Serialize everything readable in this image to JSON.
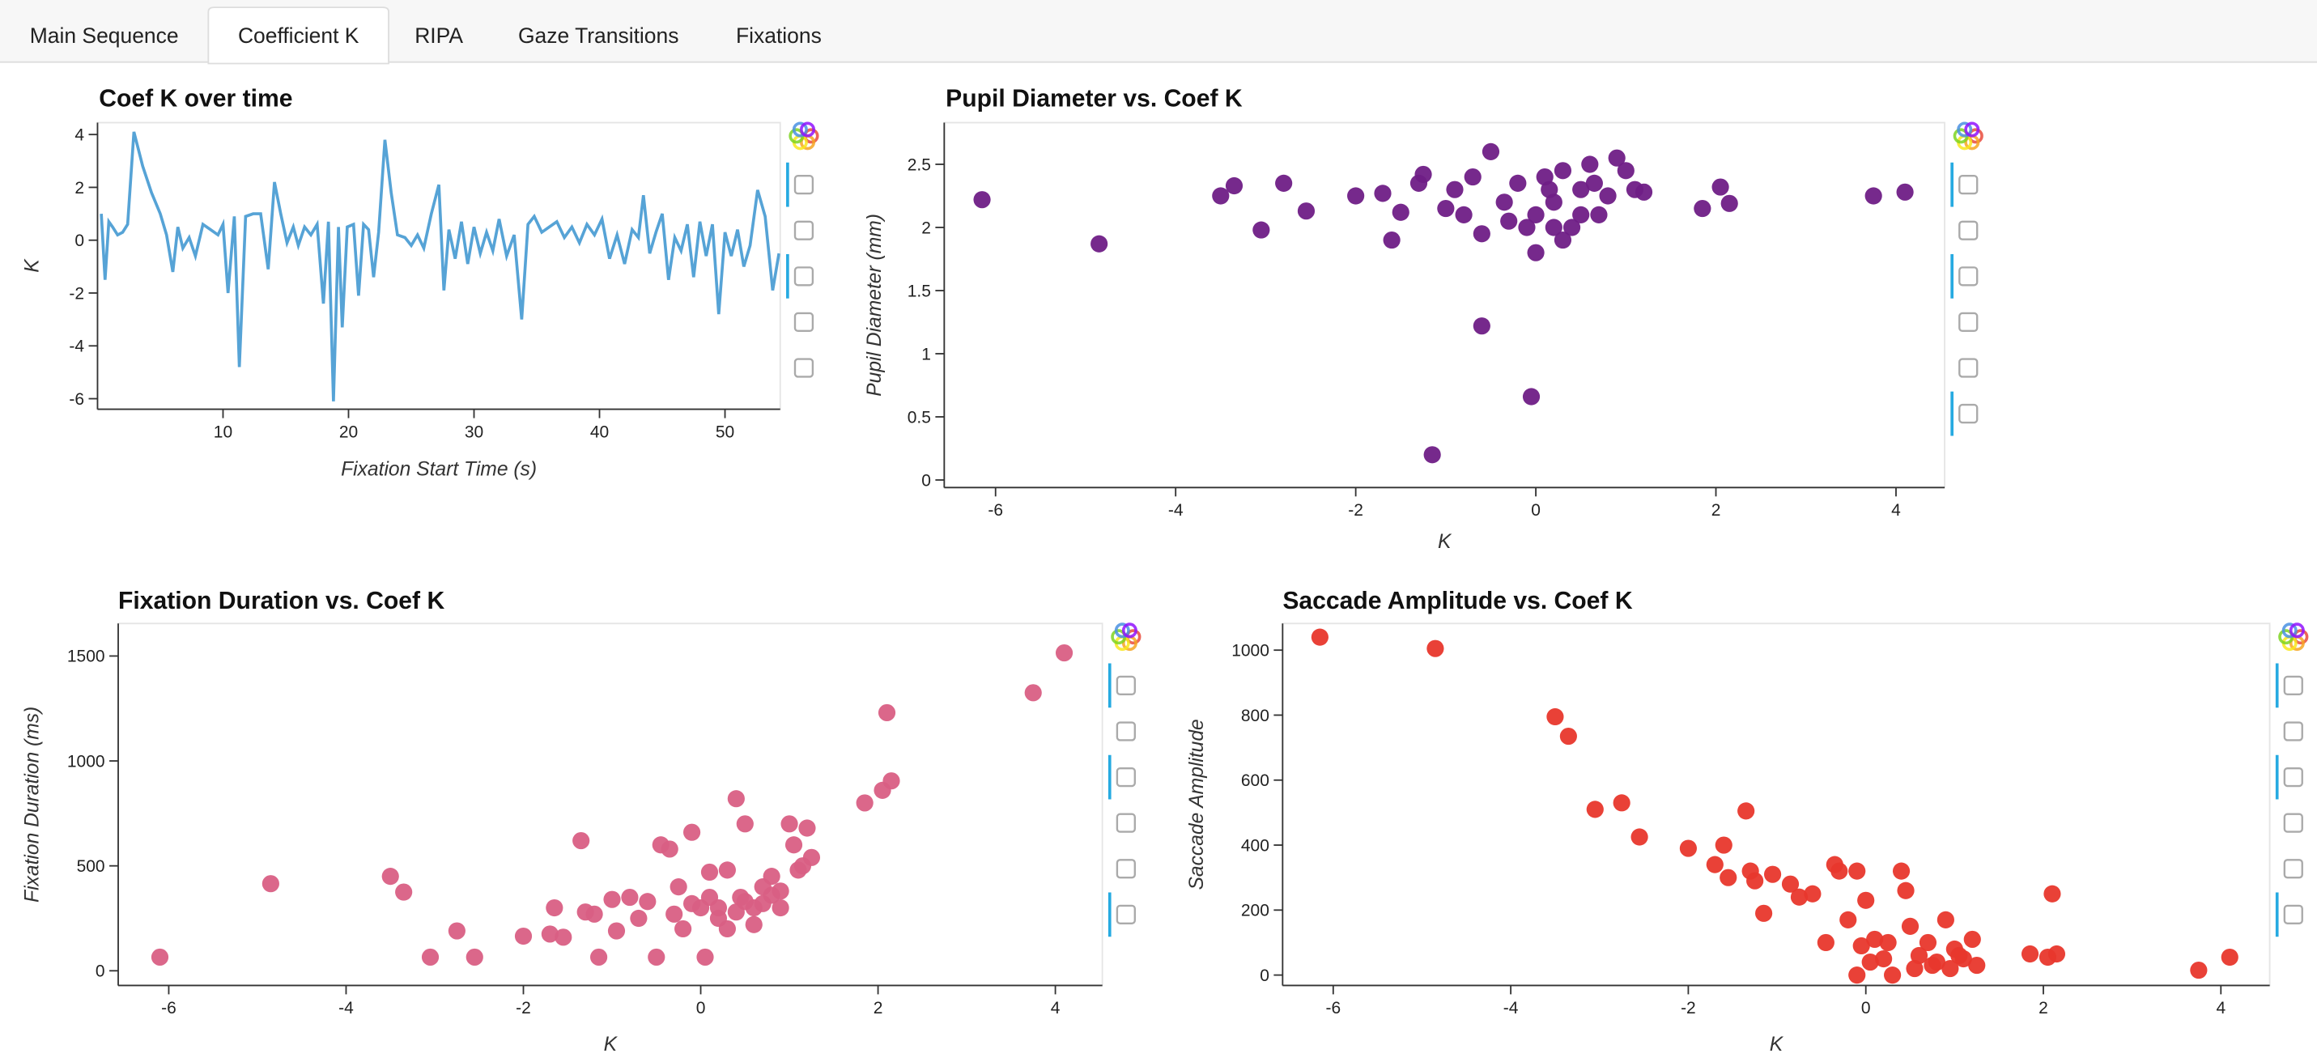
{
  "tabs": [
    "Main Sequence",
    "Coefficient K",
    "RIPA",
    "Gaze Transitions",
    "Fixations"
  ],
  "active_tab": 1,
  "chart_data": [
    {
      "type": "line",
      "title": "Coef K over time",
      "xlabel": "Fixation Start Time (s)",
      "ylabel": "K",
      "color": "#56a3d6",
      "x": [
        0.3,
        0.6,
        0.9,
        1.2,
        1.6,
        2.0,
        2.4,
        2.9,
        3.6,
        4.3,
        5.0,
        5.5,
        6.0,
        6.4,
        6.8,
        7.3,
        7.8,
        8.4,
        9.0,
        9.6,
        10.0,
        10.4,
        10.9,
        11.3,
        11.8,
        12.4,
        13.0,
        13.6,
        14.1,
        14.6,
        15.1,
        15.6,
        16.0,
        16.5,
        17.0,
        17.5,
        18.0,
        18.4,
        18.8,
        19.2,
        19.5,
        19.9,
        20.4,
        20.8,
        21.2,
        21.6,
        22.0,
        22.4,
        22.9,
        23.4,
        23.9,
        24.5,
        25.0,
        25.5,
        26.0,
        26.6,
        27.2,
        27.6,
        28.0,
        28.5,
        29.0,
        29.5,
        30.0,
        30.5,
        31.0,
        31.5,
        32.0,
        32.6,
        33.2,
        33.8,
        34.3,
        34.8,
        35.4,
        36.0,
        36.6,
        37.2,
        37.8,
        38.4,
        39.0,
        39.6,
        40.2,
        40.8,
        41.4,
        42.0,
        42.6,
        43.1,
        43.5,
        44.0,
        44.5,
        45.0,
        45.5,
        46.0,
        46.5,
        47.0,
        47.5,
        48.0,
        48.5,
        49.0,
        49.5,
        50.0,
        50.5,
        51.0,
        51.5,
        52.0,
        52.6,
        53.2,
        53.8,
        54.3
      ],
      "values": [
        1.0,
        -1.5,
        0.7,
        0.5,
        0.2,
        0.3,
        0.6,
        4.1,
        2.8,
        1.8,
        1.0,
        0.2,
        -1.2,
        0.5,
        -0.3,
        0.1,
        -0.6,
        0.6,
        0.4,
        0.2,
        0.6,
        -2.0,
        0.9,
        -4.8,
        0.9,
        1.0,
        1.0,
        -1.1,
        2.2,
        1.0,
        -0.1,
        0.5,
        -0.2,
        0.5,
        0.2,
        0.6,
        -2.4,
        0.7,
        -6.1,
        0.5,
        -3.3,
        0.5,
        0.6,
        -2.1,
        0.6,
        0.4,
        -1.4,
        0.3,
        3.8,
        1.8,
        0.2,
        0.1,
        -0.2,
        0.2,
        -0.3,
        1.0,
        2.1,
        -1.9,
        0.4,
        -0.7,
        0.7,
        -0.9,
        0.5,
        -0.5,
        0.3,
        -0.4,
        0.8,
        -0.6,
        0.2,
        -3.0,
        0.6,
        0.9,
        0.3,
        0.5,
        0.7,
        0.1,
        0.5,
        -0.1,
        0.6,
        0.2,
        0.8,
        -0.7,
        0.2,
        -0.9,
        0.4,
        0.1,
        1.7,
        -0.5,
        0.3,
        1.0,
        -1.5,
        0.1,
        -0.4,
        0.6,
        -1.4,
        0.7,
        -0.6,
        0.6,
        -2.8,
        0.3,
        -0.6,
        0.4,
        -1.0,
        -0.2,
        1.9,
        0.9,
        -1.9,
        -0.5
      ],
      "xlim": [
        0,
        54.4
      ],
      "ylim": [
        -6.4,
        4.45
      ],
      "xticks": [
        10,
        20,
        30,
        40,
        50
      ],
      "yticks": [
        -6,
        -4,
        -2,
        0,
        2,
        4
      ]
    },
    {
      "type": "scatter",
      "title": "Pupil Diameter vs. Coef K",
      "xlabel": "K",
      "ylabel": "Pupil Diameter (mm)",
      "color": "#6f1d86",
      "x": [
        -6.15,
        -4.85,
        -3.5,
        -3.35,
        -3.05,
        -2.8,
        -2.55,
        -2.0,
        -1.7,
        -1.6,
        -1.5,
        -1.3,
        -1.25,
        -1.15,
        -0.6,
        -0.05,
        1.85,
        2.05,
        2.15,
        3.75,
        4.1,
        -0.5,
        -0.35,
        -0.2,
        -0.1,
        0,
        0.1,
        0.2,
        0.3,
        0.4,
        0.5,
        0.6,
        0.7,
        0.8,
        0.9,
        1.0,
        1.1,
        1.2,
        0.3,
        0.0,
        -0.8,
        -0.6,
        -0.9,
        0.5,
        0.2,
        -0.3,
        -1.0,
        -0.7,
        0.15,
        0.65
      ],
      "values": [
        2.22,
        1.87,
        2.25,
        2.33,
        1.98,
        2.35,
        2.13,
        2.25,
        2.27,
        1.9,
        2.12,
        2.35,
        2.42,
        0.2,
        1.22,
        0.66,
        2.15,
        2.32,
        2.19,
        2.25,
        2.28,
        2.6,
        2.2,
        2.35,
        2.0,
        2.1,
        2.4,
        2.2,
        2.45,
        2.0,
        2.3,
        2.5,
        2.1,
        2.25,
        2.55,
        2.45,
        2.3,
        2.28,
        1.9,
        1.8,
        2.1,
        1.95,
        2.3,
        2.1,
        2.0,
        2.05,
        2.15,
        2.4,
        2.3,
        2.35
      ],
      "xlim": [
        -6.57,
        4.54
      ],
      "ylim": [
        -0.06,
        2.83
      ],
      "xticks": [
        -6,
        -4,
        -2,
        0,
        2,
        4
      ],
      "yticks": [
        0,
        0.5,
        1,
        1.5,
        2,
        2.5
      ]
    },
    {
      "type": "scatter",
      "title": "Fixation Duration vs. Coef K",
      "xlabel": "K",
      "ylabel": "Fixation Duration (ms)",
      "color": "#d95f84",
      "x": [
        -6.1,
        -4.85,
        -3.5,
        -3.35,
        -3.05,
        -2.75,
        -2.55,
        -2.0,
        -1.65,
        -1.7,
        -1.55,
        -1.35,
        -1.3,
        -1.2,
        -1.15,
        -1.0,
        -0.95,
        -0.8,
        -0.7,
        -0.6,
        -0.5,
        -0.45,
        -0.35,
        -0.25,
        -0.1,
        0,
        0.1,
        0.2,
        0.3,
        0.4,
        0.45,
        0.5,
        0.6,
        0.7,
        0.8,
        0.9,
        1.0,
        1.05,
        1.1,
        1.2,
        1.25,
        -0.2,
        0.05,
        0.3,
        0.6,
        0.9,
        1.15,
        1.85,
        2.05,
        2.1,
        2.15,
        3.75,
        4.1,
        0.2,
        0.4,
        0.5,
        0.7,
        0.8,
        -0.3,
        -0.1,
        0.1
      ],
      "values": [
        65,
        415,
        450,
        375,
        65,
        190,
        65,
        165,
        300,
        175,
        160,
        620,
        280,
        270,
        65,
        340,
        190,
        350,
        250,
        330,
        65,
        600,
        580,
        400,
        660,
        300,
        470,
        250,
        480,
        820,
        350,
        700,
        300,
        400,
        450,
        380,
        700,
        600,
        480,
        680,
        540,
        200,
        65,
        200,
        220,
        300,
        500,
        800,
        860,
        1230,
        905,
        1325,
        1515,
        300,
        280,
        330,
        320,
        360,
        270,
        320,
        350
      ],
      "xlim": [
        -6.57,
        4.53
      ],
      "ylim": [
        -70,
        1655
      ],
      "xticks": [
        -6,
        -4,
        -2,
        0,
        2,
        4
      ],
      "yticks": [
        0,
        500,
        1000,
        1500
      ]
    },
    {
      "type": "scatter",
      "title": "Saccade Amplitude vs. Coef K",
      "xlabel": "K",
      "ylabel": "Saccade Amplitude",
      "color": "#e8372c",
      "x": [
        -6.15,
        -4.85,
        -3.5,
        -3.35,
        -3.05,
        -2.75,
        -2.55,
        -2.0,
        -1.7,
        -1.6,
        -1.55,
        -1.35,
        -1.3,
        -1.25,
        -1.15,
        -1.05,
        -0.85,
        -0.75,
        -0.6,
        -0.45,
        -0.35,
        -0.3,
        -0.1,
        0,
        -0.2,
        -0.05,
        0.1,
        0.2,
        0.3,
        0.4,
        0.45,
        0.5,
        0.6,
        0.7,
        0.8,
        0.9,
        1.0,
        1.1,
        1.2,
        1.25,
        -0.1,
        0.05,
        0.25,
        0.55,
        0.75,
        0.95,
        1.05,
        1.85,
        2.05,
        2.1,
        2.15,
        3.75,
        4.1
      ],
      "values": [
        1040,
        1005,
        795,
        735,
        510,
        530,
        425,
        390,
        340,
        400,
        300,
        505,
        320,
        290,
        190,
        310,
        280,
        240,
        250,
        100,
        340,
        320,
        320,
        230,
        170,
        90,
        110,
        50,
        0,
        320,
        260,
        150,
        60,
        100,
        40,
        170,
        80,
        50,
        110,
        30,
        0,
        40,
        100,
        20,
        30,
        20,
        60,
        65,
        55,
        250,
        65,
        15,
        55
      ],
      "xlim": [
        -6.57,
        4.55
      ],
      "ylim": [
        -32,
        1082
      ],
      "xticks": [
        -6,
        -4,
        -2,
        0,
        2,
        4
      ],
      "yticks": [
        0,
        200,
        400,
        600,
        800,
        1000
      ]
    }
  ]
}
